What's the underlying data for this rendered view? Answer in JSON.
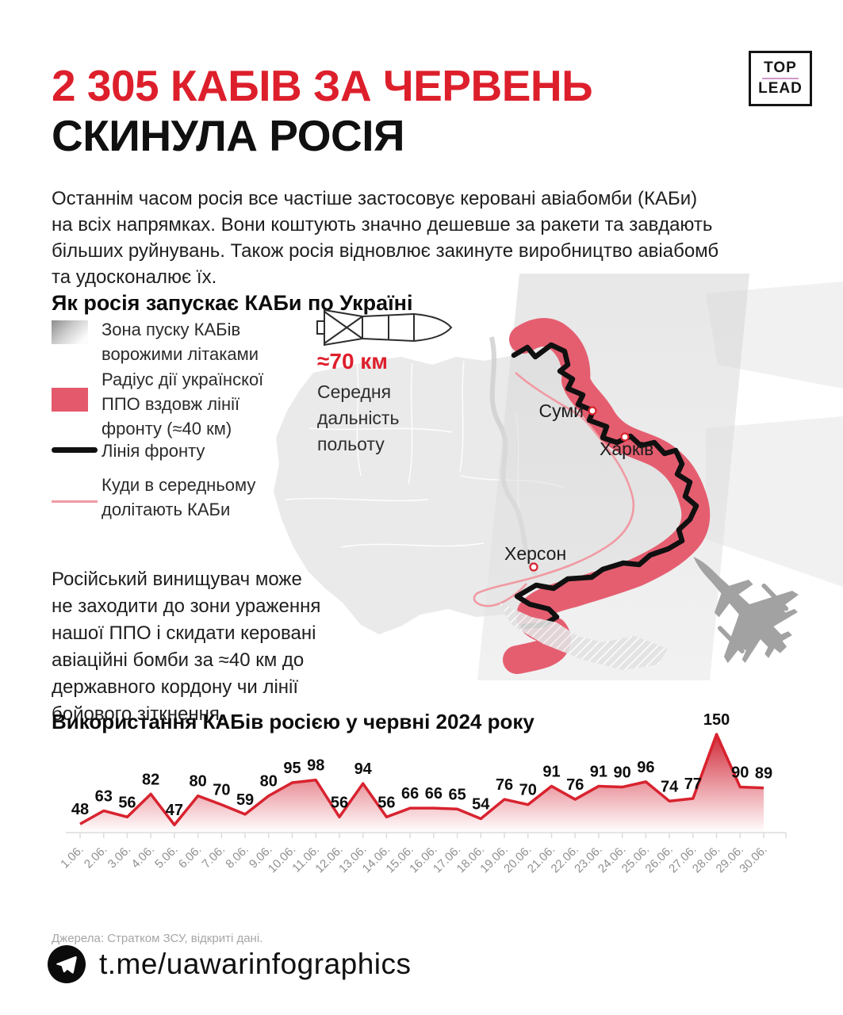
{
  "header": {
    "title_line1": "2 305 КАБІВ ЗА ЧЕРВЕНЬ",
    "title_line2": "СКИНУЛА РОСІЯ",
    "logo": {
      "top": "TOP",
      "lead": "LEAD"
    }
  },
  "intro": "Останнім часом росія все частіше застосовує керовані авіабомби (КАБи)\nна всіх напрямках. Вони коштують значно дешевше за ракети та завдають\nбільших руйнувань. Також росія відновлює закинуте виробництво авіабомб\nта удосконалює їх.",
  "map_section": {
    "heading": "Як росія запускає КАБи по Україні",
    "legend": [
      {
        "icon": "launch-zone-swatch",
        "label": "Зона пуску КАБів\nворожими літаками"
      },
      {
        "icon": "ppo-band-swatch",
        "label": "Радіус дії українскої\nППО вздовж лінії\nфронту (≈40 км)"
      },
      {
        "icon": "front-line-swatch",
        "label": "Лінія фронту"
      },
      {
        "icon": "kab-reach-swatch",
        "label": "Куди в середньому\nдолітають КАБи"
      }
    ],
    "bomb_range": {
      "value": "≈70 км",
      "caption": "Середня\nдальність\nпольоту"
    },
    "cities": [
      "Суми",
      "Харків",
      "Херсон"
    ],
    "note": "Російський винищувач може\nне заходити до зони ураження\nнашої ППО і скидати керовані\nавіаційні бомби за ≈40 км до\nдержавного кордону чи лінії\nбойового зіткнення."
  },
  "chart_data": {
    "type": "area",
    "title": "Використання КАБів росією у червні 2024 року",
    "categories": [
      "1.06.",
      "2.06.",
      "3.06.",
      "4.06.",
      "5.06.",
      "6.06.",
      "7.06.",
      "8.06.",
      "9.06.",
      "10.06.",
      "11.06.",
      "12.06.",
      "13.06.",
      "14.06.",
      "15.06.",
      "16.06.",
      "17.06.",
      "18.06.",
      "19.06.",
      "20.06.",
      "21.06.",
      "22.06.",
      "23.06.",
      "24.06.",
      "25.06.",
      "26.06.",
      "27.06.",
      "28.06.",
      "29.06.",
      "30.06."
    ],
    "values": [
      48,
      63,
      56,
      82,
      47,
      80,
      70,
      59,
      80,
      95,
      98,
      56,
      94,
      56,
      66,
      66,
      65,
      54,
      76,
      70,
      91,
      76,
      91,
      90,
      96,
      74,
      77,
      150,
      90,
      89
    ],
    "total": 2305,
    "xlabel": "",
    "ylabel": "",
    "ylim": [
      0,
      160
    ],
    "grid": false,
    "legend_position": "none",
    "line_color": "#d8232f",
    "value_labels": true
  },
  "source": "Джерела: Стратком ЗСУ, відкриті дані.",
  "footer": {
    "channel": "t.me/uawarinfographics"
  },
  "colors": {
    "accent_red": "#dd1f2c",
    "chart_line": "#d8232f",
    "ppo_band": "#e4596b",
    "kab_reach": "#f09aa3",
    "front_line": "#101010",
    "logo_divider": "#cf97c9"
  }
}
